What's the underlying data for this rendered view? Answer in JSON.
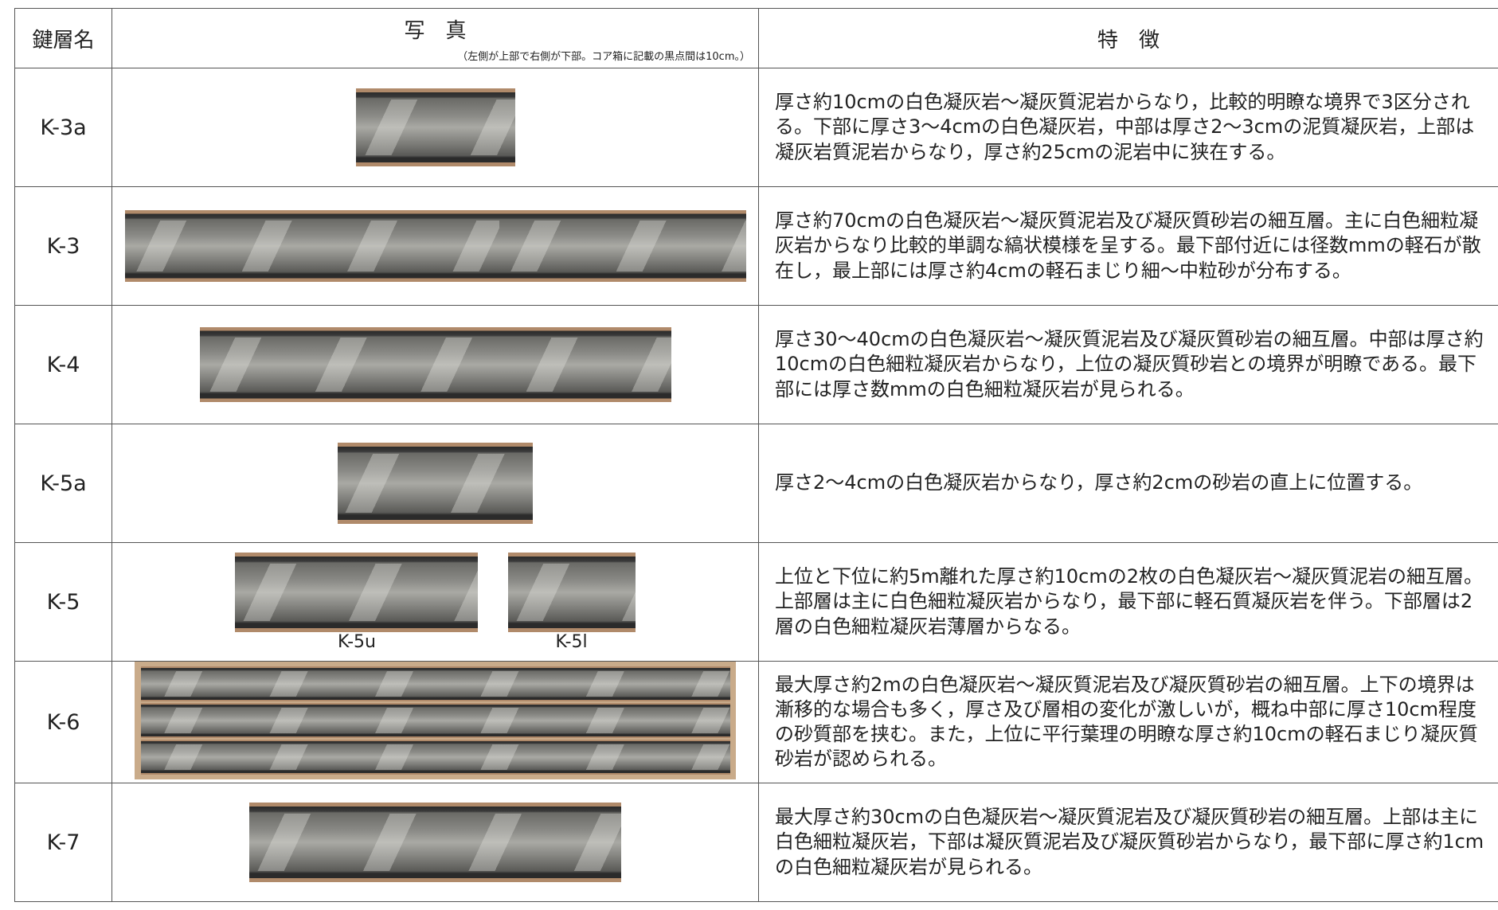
{
  "header": {
    "name": "鍵層名",
    "photo": "写　真",
    "photo_note": "（左側が上部で右側が下部。コア箱に記載の黒点間は10cm。）",
    "features": "特　徴"
  },
  "rows": [
    {
      "name": "K-3a",
      "description": "厚さ約10cmの白色凝灰岩～凝灰質泥岩からなり，比較的明瞭な境界で3区分される。下部に厚さ3～4cmの白色凝灰岩，中部は厚さ2～3cmの泥質凝灰岩，上部は凝灰岩質泥岩からなり，厚さ約25cmの泥岩中に狭在する。"
    },
    {
      "name": "K-3",
      "description": "厚さ約70cmの白色凝灰岩～凝灰質泥岩及び凝灰質砂岩の細互層。主に白色細粒凝灰岩からなり比較的単調な縞状模様を呈する。最下部付近には径数mmの軽石が散在し，最上部には厚さ約4cmの軽石まじり細～中粒砂が分布する。"
    },
    {
      "name": "K-4",
      "description": "厚さ30～40cmの白色凝灰岩～凝灰質泥岩及び凝灰質砂岩の細互層。中部は厚さ約10cmの白色細粒凝灰岩からなり，上位の凝灰質砂岩との境界が明瞭である。最下部には厚さ数mmの白色細粒凝灰岩が見られる。"
    },
    {
      "name": "K-5a",
      "description": "厚さ2～4cmの白色凝灰岩からなり，厚さ約2cmの砂岩の直上に位置する。"
    },
    {
      "name": "K-5",
      "captions": [
        "K-5u",
        "K-5l"
      ],
      "description": "上位と下位に約5m離れた厚さ約10cmの2枚の白色凝灰岩～凝灰質泥岩の細互層。上部層は主に白色細粒凝灰岩からなり，最下部に軽石質凝灰岩を伴う。下部層は2層の白色細粒凝灰岩薄層からなる。"
    },
    {
      "name": "K-6",
      "description": "最大厚さ約2mの白色凝灰岩～凝灰質泥岩及び凝灰質砂岩の細互層。上下の境界は漸移的な場合も多く，厚さ及び層相の変化が激しいが，概ね中部に厚さ10cm程度の砂質部を挟む。また，上位に平行葉理の明瞭な厚さ約10cmの軽石まじり凝灰質砂岩が認められる。"
    },
    {
      "name": "K-7",
      "description": "最大厚さ約30cmの白色凝灰岩～凝灰質泥岩及び凝灰質砂岩の細互層。上部は主に白色細粒凝灰岩，下部は凝灰質泥岩及び凝灰質砂岩からなり，最下部に厚さ約1cmの白色細粒凝灰岩が見られる。"
    }
  ]
}
